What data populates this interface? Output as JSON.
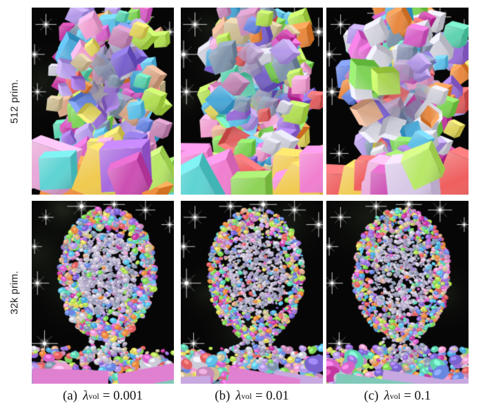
{
  "figure": {
    "row_labels": [
      "512 prim.",
      "32k prim."
    ],
    "captions": [
      {
        "index": "(a)",
        "symbol": "λ",
        "subscript": "vol",
        "value": "= 0.001"
      },
      {
        "index": "(b)",
        "symbol": "λ",
        "subscript": "vol",
        "value": "= 0.01"
      },
      {
        "index": "(c)",
        "symbol": "λ",
        "subscript": "vol",
        "value": "= 0.1"
      }
    ]
  },
  "render": {
    "panel_background": "#060606",
    "star_color": "#ffffff",
    "stars": [
      [
        0.1,
        0.09
      ],
      [
        0.35,
        0.03
      ],
      [
        0.58,
        0.02
      ],
      [
        0.8,
        0.05
      ],
      [
        0.04,
        0.45
      ],
      [
        0.09,
        0.78
      ],
      [
        0.97,
        0.13
      ],
      [
        0.02,
        0.25
      ]
    ],
    "box_palette": [
      "#d863c8",
      "#c2389f",
      "#9a6fd8",
      "#7a62cf",
      "#6a87e0",
      "#5fc0e8",
      "#5fd3b0",
      "#7ed356",
      "#b2de54",
      "#e0d35f",
      "#cdbd95",
      "#d9a788",
      "#e8883f",
      "#e06060",
      "#b49ae8",
      "#ccccd8",
      "#c689b8",
      "#7f94aa",
      "#f0a0d0",
      "#4aa8d8"
    ],
    "face_palette": [
      "#b5aec6",
      "#c6bfcf",
      "#a49ebb",
      "#cfc9d8",
      "#978fae",
      "#bdb2cf",
      "#8f9ab0"
    ],
    "glass_palette": [
      "#9a92b8",
      "#8aa0b4",
      "#b39ac4",
      "#7d88a8",
      "#a8b4c4"
    ],
    "shoulder_palette": [
      "#e35fc4",
      "#cc4fb3",
      "#a86adf",
      "#f07fd0",
      "#8ed357",
      "#5fd3d3",
      "#ef5f5f",
      "#f0c94f",
      "#ef8f3f",
      "#d8c8e8",
      "#b8e868",
      "#e8a8d8"
    ],
    "floor_palette": [
      "#e080d0",
      "#c8a8e0",
      "#80c8b8"
    ],
    "coarse": {
      "head_boxes": 135,
      "outer_boxes": 48,
      "shoulder_boxes": 16,
      "neck_boxes": 14
    },
    "fine": {
      "head_blobs": 1500,
      "shoulder_blobs": 280,
      "neck_blobs": 120,
      "corner_blobs": 16,
      "floor_slabs": 3
    },
    "panels": [
      {
        "name": "a-512-prim",
        "row": 0,
        "seed": 11,
        "min_size": 13,
        "max_size": 28
      },
      {
        "name": "b-512-prim",
        "row": 0,
        "seed": 29,
        "min_size": 14,
        "max_size": 30
      },
      {
        "name": "c-512-prim",
        "row": 0,
        "seed": 47,
        "min_size": 16,
        "max_size": 34,
        "accent": "#d2d2dc"
      },
      {
        "name": "a-32k-prim",
        "row": 1,
        "seed": 63,
        "min_size": 3,
        "max_size": 10
      },
      {
        "name": "b-32k-prim",
        "row": 1,
        "seed": 71,
        "min_size": 3,
        "max_size": 8
      },
      {
        "name": "c-32k-prim",
        "row": 1,
        "seed": 88,
        "min_size": 3,
        "max_size": 8
      }
    ]
  }
}
